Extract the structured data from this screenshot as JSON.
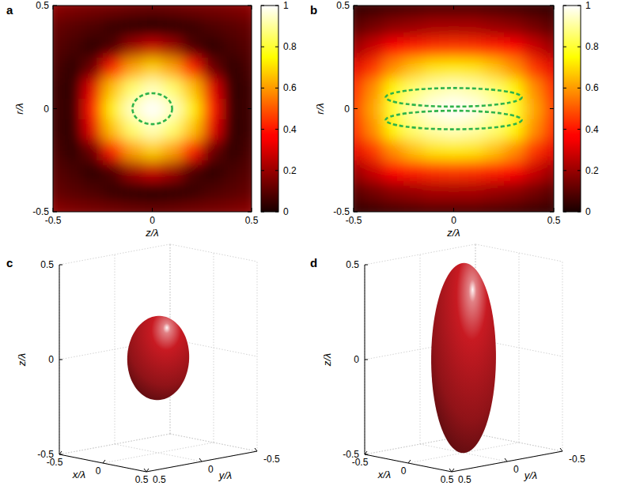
{
  "chart_data": [
    {
      "type": "heatmap",
      "title": "a",
      "x_label": "z/λ",
      "y_label": "r/λ",
      "xlim": [
        -0.5,
        0.5
      ],
      "ylim": [
        -0.5,
        0.5
      ],
      "xticks": [
        -0.5,
        0,
        0.5
      ],
      "yticks": [
        -0.5,
        0,
        0.5
      ],
      "x": [
        -0.5,
        -0.4,
        -0.3,
        -0.2,
        -0.1,
        0,
        0.1,
        0.2,
        0.3,
        0.4,
        0.5
      ],
      "y": [
        -0.5,
        -0.4,
        -0.3,
        -0.2,
        -0.1,
        0,
        0.1,
        0.2,
        0.3,
        0.4,
        0.5
      ],
      "cells": [
        [
          0.18,
          0.16,
          0.15,
          0.14,
          0.13,
          0.12,
          0.13,
          0.14,
          0.15,
          0.16,
          0.18
        ],
        [
          0.12,
          0.1,
          0.08,
          0.05,
          0.03,
          0.02,
          0.03,
          0.05,
          0.08,
          0.1,
          0.12
        ],
        [
          0.1,
          0.07,
          0.03,
          0.08,
          0.21,
          0.27,
          0.21,
          0.08,
          0.03,
          0.07,
          0.1
        ],
        [
          0.08,
          0.03,
          0.13,
          0.41,
          0.61,
          0.68,
          0.61,
          0.41,
          0.13,
          0.03,
          0.08
        ],
        [
          0.06,
          0.03,
          0.32,
          0.66,
          0.86,
          0.93,
          0.86,
          0.66,
          0.32,
          0.03,
          0.06
        ],
        [
          0.06,
          0.04,
          0.4,
          0.73,
          0.94,
          1,
          0.94,
          0.73,
          0.4,
          0.04,
          0.06
        ],
        [
          0.06,
          0.03,
          0.32,
          0.66,
          0.86,
          0.93,
          0.86,
          0.66,
          0.32,
          0.03,
          0.06
        ],
        [
          0.08,
          0.03,
          0.13,
          0.41,
          0.61,
          0.68,
          0.61,
          0.41,
          0.13,
          0.03,
          0.08
        ],
        [
          0.1,
          0.07,
          0.03,
          0.08,
          0.21,
          0.27,
          0.21,
          0.08,
          0.03,
          0.07,
          0.1
        ],
        [
          0.12,
          0.1,
          0.08,
          0.05,
          0.03,
          0.02,
          0.03,
          0.05,
          0.08,
          0.1,
          0.12
        ],
        [
          0.18,
          0.16,
          0.15,
          0.14,
          0.13,
          0.12,
          0.13,
          0.14,
          0.15,
          0.16,
          0.18
        ]
      ],
      "color_range": [
        0,
        1
      ],
      "color_ticks": [
        0,
        0.2,
        0.4,
        0.6,
        0.8,
        1
      ],
      "contours": [
        {
          "center": [
            0,
            0
          ],
          "radii": [
            0.1,
            0.075
          ]
        }
      ],
      "color": "#2fb34a",
      "line_style": "dashed"
    },
    {
      "type": "heatmap",
      "title": "b",
      "x_label": "z/λ",
      "y_label": "r/λ",
      "xlim": [
        -0.5,
        0.5
      ],
      "ylim": [
        -0.5,
        0.5
      ],
      "xticks": [
        -0.5,
        0,
        0.5
      ],
      "yticks": [
        -0.5,
        0,
        0.5
      ],
      "x": [
        -0.5,
        -0.4,
        -0.3,
        -0.2,
        -0.1,
        0,
        0.1,
        0.2,
        0.3,
        0.4,
        0.5
      ],
      "y": [
        -0.5,
        -0.4,
        -0.3,
        -0.2,
        -0.1,
        0,
        0.1,
        0.2,
        0.3,
        0.4,
        0.5
      ],
      "cells": [
        [
          0.04,
          0.05,
          0.06,
          0.07,
          0.08,
          0.08,
          0.08,
          0.07,
          0.06,
          0.05,
          0.04
        ],
        [
          0.1,
          0.14,
          0.18,
          0.2,
          0.22,
          0.22,
          0.22,
          0.2,
          0.18,
          0.14,
          0.1
        ],
        [
          0.2,
          0.28,
          0.36,
          0.41,
          0.44,
          0.45,
          0.44,
          0.41,
          0.36,
          0.28,
          0.2
        ],
        [
          0.32,
          0.45,
          0.58,
          0.66,
          0.71,
          0.72,
          0.71,
          0.66,
          0.58,
          0.45,
          0.32
        ],
        [
          0.42,
          0.58,
          0.74,
          0.86,
          0.91,
          0.93,
          0.91,
          0.86,
          0.74,
          0.58,
          0.42
        ],
        [
          0.45,
          0.62,
          0.8,
          0.92,
          0.98,
          1,
          0.98,
          0.92,
          0.8,
          0.62,
          0.45
        ],
        [
          0.42,
          0.58,
          0.74,
          0.86,
          0.91,
          0.93,
          0.91,
          0.86,
          0.74,
          0.58,
          0.42
        ],
        [
          0.32,
          0.45,
          0.58,
          0.66,
          0.71,
          0.72,
          0.71,
          0.66,
          0.58,
          0.45,
          0.32
        ],
        [
          0.2,
          0.28,
          0.36,
          0.41,
          0.44,
          0.45,
          0.44,
          0.41,
          0.36,
          0.28,
          0.2
        ],
        [
          0.1,
          0.14,
          0.18,
          0.2,
          0.22,
          0.22,
          0.22,
          0.2,
          0.18,
          0.14,
          0.1
        ],
        [
          0.04,
          0.05,
          0.06,
          0.07,
          0.08,
          0.08,
          0.08,
          0.07,
          0.06,
          0.05,
          0.04
        ]
      ],
      "color_range": [
        0,
        1
      ],
      "color_ticks": [
        0,
        0.2,
        0.4,
        0.6,
        0.8,
        1
      ],
      "contours": [
        {
          "center": [
            0,
            0.055
          ],
          "radii": [
            0.34,
            0.045
          ]
        },
        {
          "center": [
            0,
            -0.055
          ],
          "radii": [
            0.34,
            0.045
          ]
        }
      ],
      "color": "#2fb34a",
      "line_style": "dashed"
    },
    {
      "type": "ellipsoid",
      "title": "c",
      "x_label": "x/λ",
      "y_label": "y/λ",
      "z_label": "z/λ",
      "xlim": [
        -0.5,
        0.5
      ],
      "ylim": [
        -0.5,
        0.5
      ],
      "zlim": [
        -0.5,
        0.5
      ],
      "xticks": [
        -0.5,
        0,
        0.5
      ],
      "yticks": [
        -0.5,
        0,
        0.5
      ],
      "zticks": [
        -0.5,
        0,
        0.5
      ],
      "center": [
        0,
        0,
        0
      ],
      "semi_axes": [
        0.22,
        0.22,
        0.22
      ],
      "color": "#c81a22"
    },
    {
      "type": "ellipsoid",
      "title": "d",
      "x_label": "x/λ",
      "y_label": "y/λ",
      "z_label": "z/λ",
      "xlim": [
        -0.5,
        0.5
      ],
      "ylim": [
        -0.5,
        0.5
      ],
      "zlim": [
        -0.5,
        0.5
      ],
      "xticks": [
        -0.5,
        0,
        0.5
      ],
      "yticks": [
        -0.5,
        0,
        0.5
      ],
      "zticks": [
        -0.5,
        0,
        0.5
      ],
      "center": [
        0,
        0,
        0
      ],
      "semi_axes": [
        0.23,
        0.23,
        0.5
      ],
      "color": "#c81a22"
    }
  ]
}
